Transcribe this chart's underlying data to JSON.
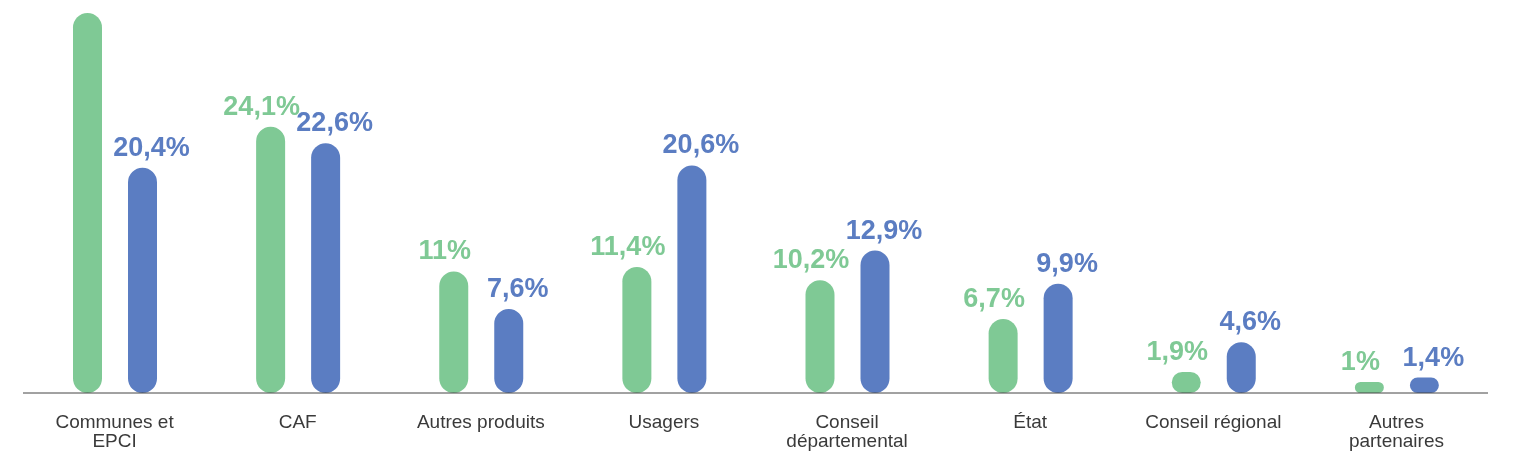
{
  "chart_data": {
    "type": "bar",
    "categories": [
      "Communes et EPCI",
      "CAF",
      "Autres produits",
      "Usagers",
      "Conseil départemental",
      "État",
      "Conseil régional",
      "Autres partenaires"
    ],
    "series": [
      {
        "color": "#7fc995",
        "values": [
          34.4,
          24.1,
          11,
          11.4,
          10.2,
          6.7,
          1.9,
          1
        ],
        "value_labels": [
          null,
          "24,1%",
          "11%",
          "11,4%",
          "10,2%",
          "6,7%",
          "1,9%",
          "1%"
        ]
      },
      {
        "color": "#5b7dc2",
        "values": [
          20.4,
          22.6,
          7.6,
          20.6,
          12.9,
          9.9,
          4.6,
          1.4
        ],
        "value_labels": [
          "20,4%",
          "22,6%",
          "7,6%",
          "20,6%",
          "12,9%",
          "9,9%",
          "4,6%",
          "1,4%"
        ]
      }
    ],
    "tick_labels": "x",
    "grid": false,
    "legend": false
  }
}
